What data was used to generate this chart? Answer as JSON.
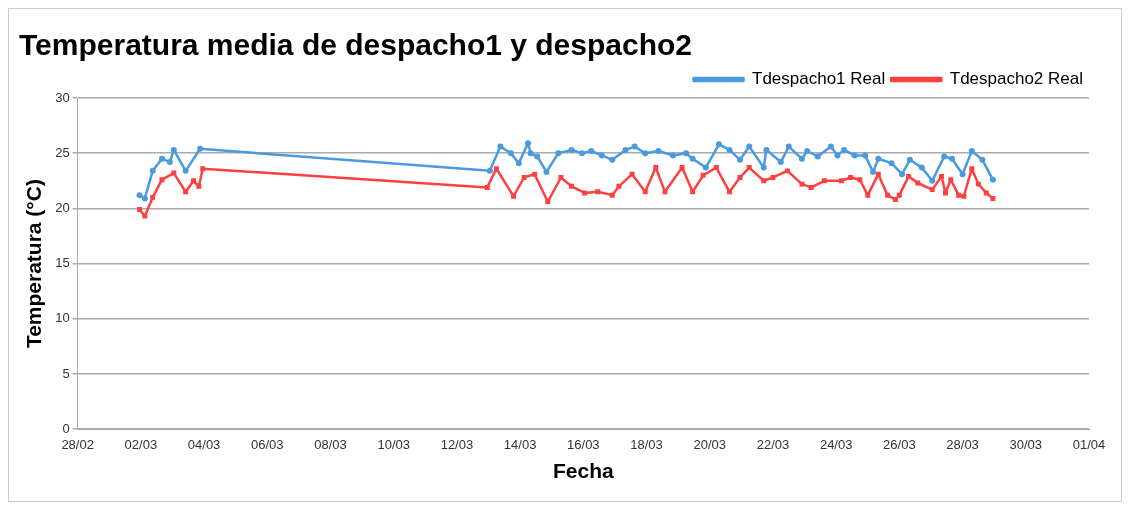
{
  "chart_data": {
    "type": "line",
    "title": "Temperatura media de despacho1 y despacho2",
    "xlabel": "Fecha",
    "ylabel": "Temperatura (°C)",
    "xlim": [
      "--02-28",
      "--04-01"
    ],
    "xticks": [
      {
        "value": "--02-28",
        "label": "28/02"
      },
      {
        "value": "--03-02",
        "label": "02/03"
      },
      {
        "value": "--03-04",
        "label": "04/03"
      },
      {
        "value": "--03-06",
        "label": "06/03"
      },
      {
        "value": "--03-08",
        "label": "08/03"
      },
      {
        "value": "--03-10",
        "label": "10/03"
      },
      {
        "value": "--03-12",
        "label": "12/03"
      },
      {
        "value": "--03-14",
        "label": "14/03"
      },
      {
        "value": "--03-16",
        "label": "16/03"
      },
      {
        "value": "--03-18",
        "label": "18/03"
      },
      {
        "value": "--03-20",
        "label": "20/03"
      },
      {
        "value": "--03-22",
        "label": "22/03"
      },
      {
        "value": "--03-24",
        "label": "24/03"
      },
      {
        "value": "--03-26",
        "label": "26/03"
      },
      {
        "value": "--03-28",
        "label": "28/03"
      },
      {
        "value": "--03-30",
        "label": "30/03"
      },
      {
        "value": "--04-01",
        "label": "01/04"
      }
    ],
    "ylim": [
      0,
      30
    ],
    "yticks": [
      0,
      5,
      10,
      15,
      20,
      25,
      30
    ],
    "grid": "y",
    "legend": "top right",
    "line_style": "solid",
    "series": [
      {
        "name": "Tdespacho1 Real",
        "color": "#4a9ae0",
        "marker": "circle",
        "x": [
          "--03-01T23:00",
          "--03-02T03:00",
          "--03-02T09:00",
          "--03-02T16:00",
          "--03-02T22:00",
          "--03-03T01:00",
          "--03-03T10:00",
          "--03-03T21:00",
          "--03-13T01:00",
          "--03-13T09:00",
          "--03-13T17:00",
          "--03-13T23:00",
          "--03-14T06:00",
          "--03-14T08:00",
          "--03-14T13:00",
          "--03-14T20:00",
          "--03-15T05:00",
          "--03-15T15:00",
          "--03-15T23:00",
          "--03-16T06:00",
          "--03-16T14:00",
          "--03-16T22:00",
          "--03-17T08:00",
          "--03-17T15:00",
          "--03-17T23:00",
          "--03-18T09:00",
          "--03-18T20:00",
          "--03-19T06:00",
          "--03-19T11:00",
          "--03-19T21:00",
          "--03-20T07:00",
          "--03-20T15:00",
          "--03-20T23:00",
          "--03-21T06:00",
          "--03-21T17:00",
          "--03-21T19:00",
          "--03-22T06:00",
          "--03-22T12:00",
          "--03-22T22:00",
          "--03-23T02:00",
          "--03-23T10:00",
          "--03-23T20:00",
          "--03-24T01:00",
          "--03-24T06:00",
          "--03-24T14:00",
          "--03-24T22:00",
          "--03-25T04:00",
          "--03-25T08:00",
          "--03-25T18:00",
          "--03-26T02:00",
          "--03-26T08:00",
          "--03-26T17:00",
          "--03-27T01:00",
          "--03-27T10:00",
          "--03-27T16:00",
          "--03-28T00:00",
          "--03-28T07:00",
          "--03-28T15:00",
          "--03-28T23:00"
        ],
        "values": [
          21.2,
          20.9,
          23.4,
          24.5,
          24.2,
          25.3,
          23.4,
          25.4,
          23.4,
          25.6,
          25,
          24.1,
          25.9,
          25,
          24.7,
          23.3,
          25,
          25.3,
          25,
          25.2,
          24.8,
          24.4,
          25.3,
          25.6,
          25,
          25.2,
          24.8,
          25,
          24.5,
          23.7,
          25.8,
          25.3,
          24.4,
          25.6,
          23.7,
          25.3,
          24.2,
          25.6,
          24.5,
          25.2,
          24.7,
          25.6,
          24.8,
          25.3,
          24.8,
          24.8,
          23.3,
          24.5,
          24.1,
          23.1,
          24.4,
          23.7,
          22.5,
          24.7,
          24.5,
          23.1,
          25.2,
          24.4,
          22.6
        ]
      },
      {
        "name": "Tdespacho2 Real",
        "color": "#ff4040",
        "marker": "square",
        "x": [
          "--03-01T23:00",
          "--03-02T03:00",
          "--03-02T09:00",
          "--03-02T16:00",
          "--03-03T01:00",
          "--03-03T10:00",
          "--03-03T16:00",
          "--03-03T20:00",
          "--03-03T23:00",
          "--03-12T23:00",
          "--03-13T06:00",
          "--03-13T19:00",
          "--03-14T03:00",
          "--03-14T11:00",
          "--03-14T21:00",
          "--03-15T07:00",
          "--03-15T15:00",
          "--03-16T01:00",
          "--03-16T11:00",
          "--03-16T22:00",
          "--03-17T03:00",
          "--03-17T13:00",
          "--03-17T23:00",
          "--03-18T07:00",
          "--03-18T14:00",
          "--03-19T03:00",
          "--03-19T11:00",
          "--03-19T19:00",
          "--03-20T05:00",
          "--03-20T15:00",
          "--03-20T23:00",
          "--03-21T06:00",
          "--03-21T17:00",
          "--03-22T00:00",
          "--03-22T11:00",
          "--03-22T22:00",
          "--03-23T05:00",
          "--03-23T15:00",
          "--03-24T04:00",
          "--03-24T11:00",
          "--03-24T18:00",
          "--03-25T00:00",
          "--03-25T08:00",
          "--03-25T15:00",
          "--03-25T21:00",
          "--03-26T00:00",
          "--03-26T07:00",
          "--03-26T14:00",
          "--03-27T01:00",
          "--03-27T08:00",
          "--03-27T11:00",
          "--03-27T15:00",
          "--03-27T21:00",
          "--03-28T01:00",
          "--03-28T07:00",
          "--03-28T12:00",
          "--03-28T18:00",
          "--03-28T23:00"
        ],
        "values": [
          19.9,
          19.3,
          21,
          22.6,
          23.2,
          21.5,
          22.5,
          22,
          23.6,
          21.9,
          23.6,
          21.1,
          22.8,
          23.1,
          20.6,
          22.8,
          22,
          21.4,
          21.5,
          21.2,
          22,
          23.1,
          21.5,
          23.7,
          21.5,
          23.7,
          21.5,
          23,
          23.7,
          21.5,
          22.8,
          23.7,
          22.5,
          22.8,
          23.4,
          22.2,
          21.9,
          22.5,
          22.5,
          22.8,
          22.6,
          21.2,
          23.1,
          21.2,
          20.8,
          21.2,
          22.9,
          22.3,
          21.7,
          22.9,
          21.4,
          22.6,
          21.2,
          21.1,
          23.6,
          22.2,
          21.4,
          20.9
        ]
      }
    ]
  }
}
